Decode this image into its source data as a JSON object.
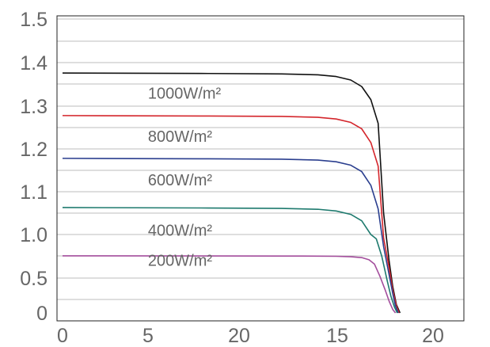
{
  "chart_data": {
    "type": "line",
    "title": "",
    "xlabel": "",
    "ylabel": "",
    "xlim": [
      0,
      22
    ],
    "ylim": [
      0,
      1.5
    ],
    "grid": true,
    "x_tick_labels": [
      "0",
      "5",
      "20",
      "15",
      "20"
    ],
    "y_tick_labels": [
      "0",
      "0.5",
      "1.0",
      "1.1",
      "1.2",
      "1.3",
      "1.4",
      "1.5"
    ],
    "series": [
      {
        "name": "1000W/m²",
        "color": "#111111",
        "x": [
          0,
          8,
          12,
          14,
          15,
          15.8,
          16.4,
          16.9,
          17.3,
          17.6,
          17.9,
          18.1,
          18.3,
          18.5
        ],
        "y": [
          1.376,
          1.375,
          1.374,
          1.372,
          1.368,
          1.36,
          1.345,
          1.315,
          1.26,
          1.05,
          0.7,
          0.38,
          0.12,
          0
        ]
      },
      {
        "name": "800W/m²",
        "color": "#d4262c",
        "x": [
          0,
          8,
          12,
          14,
          15,
          15.8,
          16.4,
          16.9,
          17.3,
          17.6,
          17.9,
          18.1,
          18.3,
          18.45
        ],
        "y": [
          1.278,
          1.277,
          1.276,
          1.274,
          1.27,
          1.262,
          1.247,
          1.215,
          1.16,
          0.96,
          0.62,
          0.33,
          0.1,
          0
        ]
      },
      {
        "name": "600W/m²",
        "color": "#2b3f8f",
        "x": [
          0,
          8,
          12,
          14,
          15,
          15.8,
          16.4,
          16.9,
          17.3,
          17.6,
          17.9,
          18.1,
          18.25,
          18.4
        ],
        "y": [
          1.178,
          1.177,
          1.176,
          1.174,
          1.17,
          1.162,
          1.147,
          1.115,
          1.06,
          0.86,
          0.54,
          0.28,
          0.1,
          0
        ]
      },
      {
        "name": "400W/m²",
        "color": "#1e7a6e",
        "x": [
          0,
          8,
          12,
          14,
          15,
          15.8,
          16.4,
          16.9,
          17.2,
          17.5,
          17.8,
          18.0,
          18.2,
          18.35
        ],
        "y": [
          1.063,
          1.062,
          1.061,
          1.059,
          1.055,
          1.047,
          1.032,
          1.0,
          0.95,
          0.75,
          0.46,
          0.24,
          0.08,
          0
        ]
      },
      {
        "name": "200W/m²",
        "color": "#a34d9c",
        "x": [
          0,
          8,
          12,
          14,
          15,
          15.8,
          16.4,
          16.8,
          17.1,
          17.4,
          17.7,
          17.9,
          18.1,
          18.25
        ],
        "y": [
          0.755,
          0.754,
          0.753,
          0.752,
          0.75,
          0.745,
          0.735,
          0.71,
          0.66,
          0.52,
          0.32,
          0.17,
          0.05,
          0
        ]
      }
    ],
    "curve_labels": [
      {
        "text": "1000W/m²",
        "x": 7.2,
        "y": 1.33
      },
      {
        "text": "800W/m²",
        "x": 7.2,
        "y": 1.23
      },
      {
        "text": "600W/m²",
        "x": 7.2,
        "y": 1.128
      },
      {
        "text": "400W/m²",
        "x": 7.2,
        "y": 1.01
      },
      {
        "text": "200W/m²",
        "x": 7.2,
        "y": 0.705
      }
    ]
  }
}
